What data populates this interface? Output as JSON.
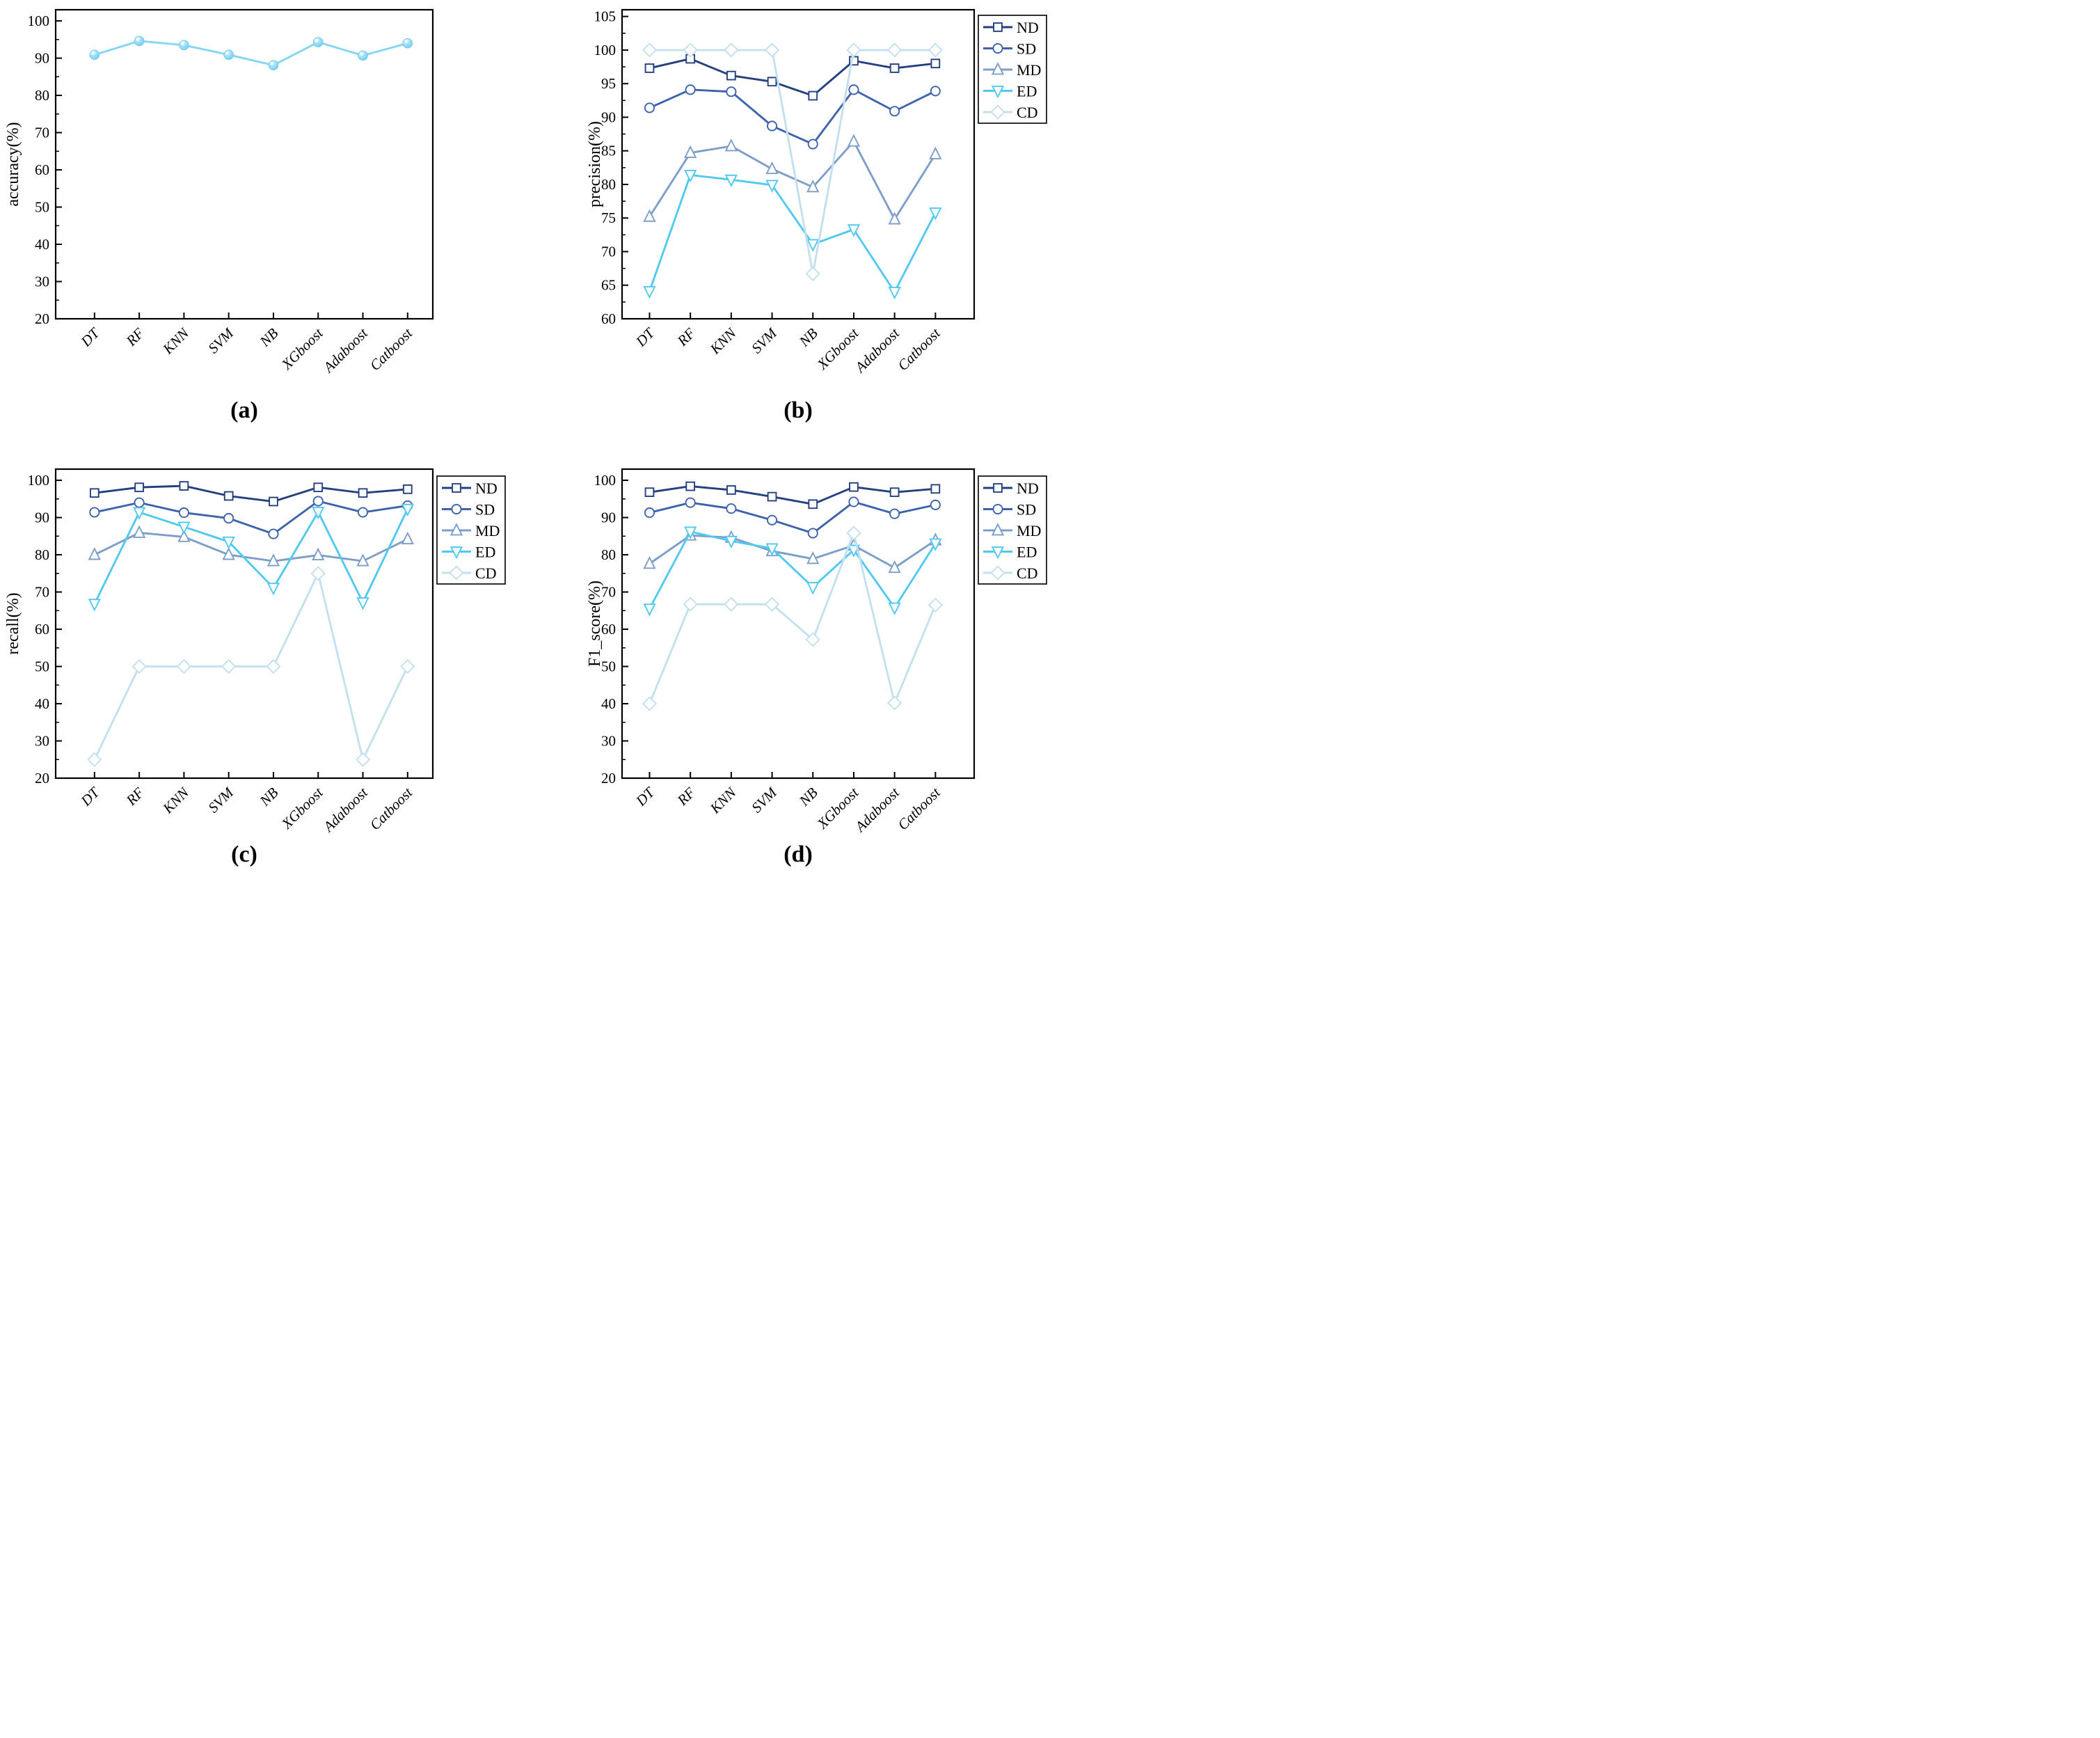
{
  "figure": {
    "background": "#ffffff",
    "captions": {
      "a": "(a)",
      "b": "(b)",
      "c": "(c)",
      "d": "(d)"
    }
  },
  "legend": {
    "labels": [
      "ND",
      "SD",
      "MD",
      "ED",
      "CD"
    ],
    "position": "top-right-outside",
    "border_color": "#1a1a1a"
  },
  "categories": [
    "DT",
    "RF",
    "KNN",
    "SVM",
    "NB",
    "XGboost",
    "Adaboost",
    "Catboost"
  ],
  "chart_data": [
    {
      "id": "a",
      "type": "line",
      "title": "",
      "xlabel": "",
      "ylabel": "accuracy(%)",
      "ylim": [
        20,
        100
      ],
      "ytick_step": 10,
      "grid": false,
      "legend": false,
      "categories": [
        "DT",
        "RF",
        "KNN",
        "SVM",
        "NB",
        "XGboost",
        "Adaboost",
        "Catboost"
      ],
      "series": [
        {
          "name": "accuracy",
          "marker": "ball",
          "color": "#85d5f3",
          "values": [
            90.9,
            94.6,
            93.5,
            90.9,
            88.1,
            94.3,
            90.7,
            94.0
          ]
        }
      ]
    },
    {
      "id": "b",
      "type": "line",
      "title": "",
      "xlabel": "",
      "ylabel": "precision(%)",
      "ylim": [
        60,
        105
      ],
      "ytick_step": 5,
      "grid": false,
      "legend": true,
      "categories": [
        "DT",
        "RF",
        "KNN",
        "SVM",
        "NB",
        "XGboost",
        "Adaboost",
        "Catboost"
      ],
      "series": [
        {
          "name": "ND",
          "marker": "square",
          "color": "#24407f",
          "values": [
            97.3,
            98.7,
            96.2,
            95.3,
            93.2,
            98.4,
            97.3,
            98.0
          ]
        },
        {
          "name": "SD",
          "marker": "circle",
          "color": "#3e63ad",
          "values": [
            91.4,
            94.1,
            93.8,
            88.7,
            86.0,
            94.1,
            90.9,
            93.9
          ]
        },
        {
          "name": "MD",
          "marker": "triangle",
          "color": "#7d9ec9",
          "values": [
            75.2,
            84.7,
            85.7,
            82.3,
            79.6,
            86.4,
            74.8,
            84.5
          ]
        },
        {
          "name": "ED",
          "marker": "triangleDown",
          "color": "#52c9f0",
          "values": [
            64.1,
            81.4,
            80.7,
            79.9,
            71.1,
            73.3,
            64.0,
            75.8
          ]
        },
        {
          "name": "CD",
          "marker": "diamond",
          "color": "#c3e0ee",
          "values": [
            100,
            100,
            100,
            100,
            66.7,
            100,
            100,
            100
          ]
        }
      ]
    },
    {
      "id": "c",
      "type": "line",
      "title": "",
      "xlabel": "",
      "ylabel": "recall(%)",
      "ylim": [
        20,
        100
      ],
      "ytick_step": 10,
      "grid": false,
      "legend": true,
      "categories": [
        "DT",
        "RF",
        "KNN",
        "SVM",
        "NB",
        "XGboost",
        "Adaboost",
        "Catboost"
      ],
      "series": [
        {
          "name": "ND",
          "marker": "square",
          "color": "#24407f",
          "values": [
            96.6,
            98.1,
            98.5,
            95.8,
            94.3,
            98.1,
            96.6,
            97.6
          ]
        },
        {
          "name": "SD",
          "marker": "circle",
          "color": "#3e63ad",
          "values": [
            91.4,
            94.0,
            91.3,
            89.8,
            85.6,
            94.4,
            91.4,
            93.2
          ]
        },
        {
          "name": "MD",
          "marker": "triangle",
          "color": "#7d9ec9",
          "values": [
            80.0,
            85.9,
            84.8,
            80.0,
            78.3,
            79.9,
            78.3,
            84.2
          ]
        },
        {
          "name": "ED",
          "marker": "triangleDown",
          "color": "#52c9f0",
          "values": [
            66.8,
            91.4,
            87.5,
            83.5,
            71.1,
            91.5,
            67.2,
            92.3
          ]
        },
        {
          "name": "CD",
          "marker": "diamond",
          "color": "#c3e0ee",
          "values": [
            25.0,
            50.0,
            50.0,
            50.0,
            50.0,
            75.0,
            25.0,
            50.0
          ]
        }
      ]
    },
    {
      "id": "d",
      "type": "line",
      "title": "",
      "xlabel": "",
      "ylabel": "F1_score(%)",
      "ylim": [
        20,
        100
      ],
      "ytick_step": 10,
      "grid": false,
      "legend": true,
      "categories": [
        "DT",
        "RF",
        "KNN",
        "SVM",
        "NB",
        "XGboost",
        "Adaboost",
        "Catboost"
      ],
      "series": [
        {
          "name": "ND",
          "marker": "square",
          "color": "#24407f",
          "values": [
            96.8,
            98.4,
            97.4,
            95.6,
            93.6,
            98.2,
            96.8,
            97.7
          ]
        },
        {
          "name": "SD",
          "marker": "circle",
          "color": "#3e63ad",
          "values": [
            91.3,
            94.0,
            92.4,
            89.3,
            85.8,
            94.2,
            91.0,
            93.4
          ]
        },
        {
          "name": "MD",
          "marker": "triangle",
          "color": "#7d9ec9",
          "values": [
            77.6,
            85.2,
            84.6,
            81.0,
            78.9,
            82.5,
            76.5,
            83.9
          ]
        },
        {
          "name": "ED",
          "marker": "triangleDown",
          "color": "#52c9f0",
          "values": [
            65.5,
            86.2,
            83.7,
            81.7,
            71.3,
            81.3,
            65.8,
            83.0
          ]
        },
        {
          "name": "CD",
          "marker": "diamond",
          "color": "#c3e0ee",
          "values": [
            40.0,
            66.7,
            66.7,
            66.7,
            57.2,
            85.8,
            40.2,
            66.5
          ]
        }
      ]
    }
  ]
}
